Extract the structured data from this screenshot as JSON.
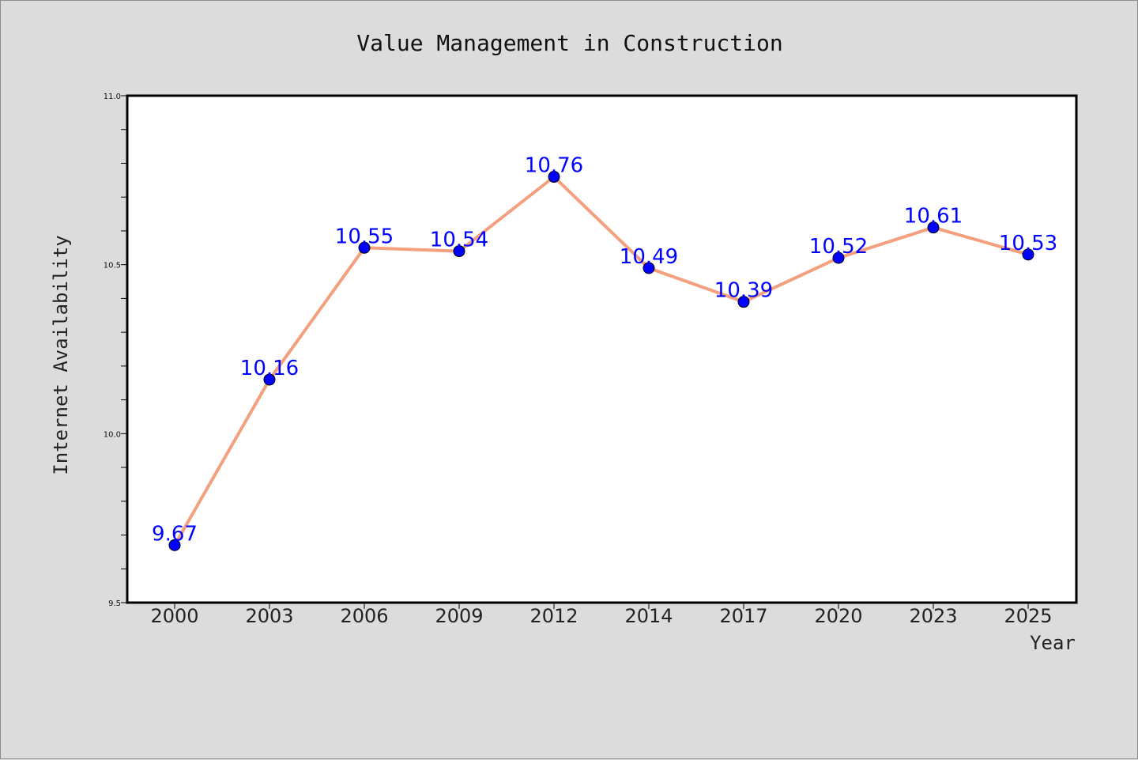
{
  "chart_data": {
    "type": "line",
    "title": "Value Management in Construction",
    "xlabel": "Year",
    "ylabel": "Internet Availability",
    "categories": [
      "2000",
      "2003",
      "2006",
      "2009",
      "2012",
      "2014",
      "2017",
      "2020",
      "2023",
      "2025"
    ],
    "values": [
      9.67,
      10.16,
      10.55,
      10.54,
      10.76,
      10.49,
      10.39,
      10.52,
      10.61,
      10.53
    ],
    "data_labels": [
      "9.67",
      "10.16",
      "10.55",
      "10.54",
      "10.76",
      "10.49",
      "10.39",
      "10.52",
      "10.61",
      "10.53"
    ],
    "ylim": [
      9.5,
      11.0
    ],
    "yticks": [
      9.5,
      10.0,
      10.5,
      11.0
    ],
    "ytick_labels": [
      "9.5",
      "10.0",
      "10.5",
      "11.0"
    ],
    "grid": false,
    "colors": {
      "line": "#f4a07e",
      "marker": "#0000ff",
      "label": "#0000ff",
      "figure_bg": "#dcdcdc",
      "plot_bg": "#ffffff"
    }
  }
}
